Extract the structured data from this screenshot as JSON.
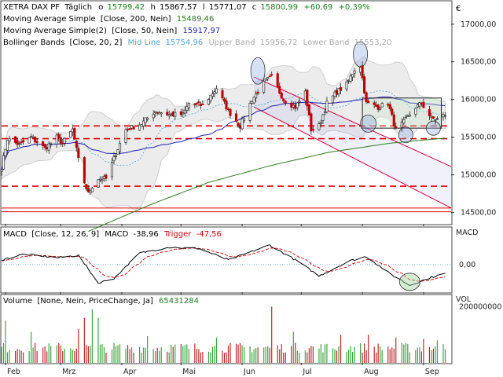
{
  "colors": {
    "candle_up": "#2b2b2b",
    "candle_down": "#c00000",
    "sma200": "#2e7d1e",
    "sma50": "#1f1fb4",
    "bollinger_band": "#cfcfcf",
    "bollinger_mid": "#4aa3df",
    "support_line": "#e00000",
    "channel": "#d9003a",
    "macd": "#000000",
    "trigger": "#d00000",
    "volume_up": "#3aa641",
    "volume_down": "#c0262d",
    "highlight_ellipse": "#3c6e3c"
  },
  "header": {
    "symbol": "XETRA DAX PF",
    "period": "Täglich",
    "open_label": "o",
    "open": "15799,42",
    "high_label": "h",
    "high": "15867,57",
    "low_label": "l",
    "low": "15771,07",
    "close_label": "c",
    "close": "15800,99",
    "change": "+60,69",
    "change_pct": "+0,39%",
    "currency_symbol": "€"
  },
  "legend": {
    "sma200_name": "Moving Average Simple",
    "sma200_params": "[Close, 200, Nein]",
    "sma200_value": "15489,46",
    "sma50_name": "Moving Average Simple(2)",
    "sma50_params": "[Close, 50, Nein]",
    "sma50_value": "15917,97",
    "bb_name": "Bollinger Bands",
    "bb_params": "[Close, 20, 2]",
    "bb_mid_label": "Mid Line",
    "bb_mid_value": "15754,96",
    "bb_upper_label": "Upper Band",
    "bb_upper_value": "15956,72",
    "bb_lower_label": "Lower Band",
    "bb_lower_value": "15553,20"
  },
  "macd_legend": {
    "name": "MACD",
    "params": "[Close, 12, 26, 9]",
    "macd_label": "MACD",
    "macd_value": "-38,96",
    "trigger_label": "Trigger",
    "trigger_value": "-47,56",
    "axis_title": "MACD"
  },
  "volume_legend": {
    "name": "Volume",
    "params": "[None, Nein, PriceChange, Ja]",
    "value": "65431284",
    "axis_title": "VOL"
  },
  "chart_data": {
    "type": "candlestick",
    "price_axis": {
      "ylim": [
        14350,
        17300
      ],
      "ticks": [
        14500,
        15000,
        15500,
        16000,
        16500,
        17000
      ],
      "tick_labels": [
        "14500,00",
        "15000,00",
        "15500,00",
        "16000,00",
        "16500,00",
        "17000,00"
      ]
    },
    "x_axis": {
      "range": [
        "2023-01-30",
        "2023-09-15"
      ],
      "tick_dates": [
        "2023-02-01",
        "2023-03-01",
        "2023-04-01",
        "2023-05-01",
        "2023-06-01",
        "2023-07-01",
        "2023-08-01",
        "2023-09-01"
      ],
      "tick_labels": [
        "Feb",
        "Mrz",
        "Apr",
        "Mai",
        "Jun",
        "Jul",
        "Aug",
        "Sep"
      ]
    },
    "close_anchors": [
      [
        "2023-01-30",
        15100
      ],
      [
        "2023-02-02",
        15480
      ],
      [
        "2023-02-08",
        15400
      ],
      [
        "2023-02-14",
        15500
      ],
      [
        "2023-02-21",
        15350
      ],
      [
        "2023-02-27",
        15500
      ],
      [
        "2023-03-02",
        15420
      ],
      [
        "2023-03-07",
        15600
      ],
      [
        "2023-03-10",
        15200
      ],
      [
        "2023-03-13",
        14900
      ],
      [
        "2023-03-15",
        14750
      ],
      [
        "2023-03-17",
        14850
      ],
      [
        "2023-03-20",
        14950
      ],
      [
        "2023-03-24",
        14950
      ],
      [
        "2023-03-30",
        15350
      ],
      [
        "2023-04-03",
        15600
      ],
      [
        "2023-04-11",
        15680
      ],
      [
        "2023-04-18",
        15850
      ],
      [
        "2023-04-25",
        15800
      ],
      [
        "2023-05-02",
        15800
      ],
      [
        "2023-05-05",
        15950
      ],
      [
        "2023-05-12",
        15920
      ],
      [
        "2023-05-19",
        16150
      ],
      [
        "2023-05-25",
        15850
      ],
      [
        "2023-05-31",
        15650
      ],
      [
        "2023-06-06",
        16000
      ],
      [
        "2023-06-13",
        16250
      ],
      [
        "2023-06-16",
        16300
      ],
      [
        "2023-06-22",
        16000
      ],
      [
        "2023-06-28",
        15900
      ],
      [
        "2023-07-03",
        16100
      ],
      [
        "2023-07-06",
        15600
      ],
      [
        "2023-07-10",
        15650
      ],
      [
        "2023-07-14",
        15950
      ],
      [
        "2023-07-19",
        16100
      ],
      [
        "2023-07-24",
        16200
      ],
      [
        "2023-07-28",
        16400
      ],
      [
        "2023-07-31",
        16450
      ],
      [
        "2023-08-03",
        15950
      ],
      [
        "2023-08-09",
        15900
      ],
      [
        "2023-08-14",
        15950
      ],
      [
        "2023-08-18",
        15600
      ],
      [
        "2023-08-22",
        15700
      ],
      [
        "2023-08-28",
        15900
      ],
      [
        "2023-08-31",
        15950
      ],
      [
        "2023-09-05",
        15750
      ],
      [
        "2023-09-08",
        15740
      ],
      [
        "2023-09-12",
        15800
      ]
    ],
    "sma200_anchors": [
      [
        "2023-03-15",
        14250
      ],
      [
        "2023-04-15",
        14600
      ],
      [
        "2023-05-15",
        14900
      ],
      [
        "2023-06-15",
        15120
      ],
      [
        "2023-07-15",
        15300
      ],
      [
        "2023-08-15",
        15420
      ],
      [
        "2023-09-12",
        15489
      ]
    ],
    "support_lines": [
      15650,
      15480,
      14850,
      14560,
      14510
    ],
    "channel": {
      "upper": [
        [
          "2023-06-07",
          16300
        ],
        [
          "2023-09-15",
          15110
        ]
      ],
      "lower": [
        [
          "2023-06-07",
          15900
        ],
        [
          "2023-09-15",
          14560
        ]
      ]
    },
    "consolidation_box": {
      "x": [
        "2023-08-01",
        "2023-09-10"
      ],
      "y": [
        15620,
        16020
      ]
    },
    "macd_axis": {
      "ylim": [
        -120,
        160
      ],
      "ticks": [
        0
      ],
      "tick_labels": [
        "0,00"
      ]
    },
    "macd_anchors": [
      [
        "2023-01-30",
        20
      ],
      [
        "2023-02-10",
        45
      ],
      [
        "2023-02-28",
        30
      ],
      [
        "2023-03-10",
        40
      ],
      [
        "2023-03-20",
        -80
      ],
      [
        "2023-03-28",
        -60
      ],
      [
        "2023-04-10",
        50
      ],
      [
        "2023-04-25",
        75
      ],
      [
        "2023-05-10",
        70
      ],
      [
        "2023-05-25",
        20
      ],
      [
        "2023-06-15",
        85
      ],
      [
        "2023-06-30",
        10
      ],
      [
        "2023-07-10",
        -50
      ],
      [
        "2023-07-25",
        15
      ],
      [
        "2023-08-03",
        35
      ],
      [
        "2023-08-15",
        -40
      ],
      [
        "2023-08-25",
        -90
      ],
      [
        "2023-09-05",
        -55
      ],
      [
        "2023-09-12",
        -39
      ]
    ],
    "volume_axis": {
      "ylim": [
        0,
        240000000
      ],
      "ticks": [
        200000000
      ],
      "tick_labels": [
        "200000000"
      ]
    },
    "volume_spikes": [
      [
        "2023-02-01",
        150000000
      ],
      [
        "2023-02-14",
        110000000
      ],
      [
        "2023-03-10",
        120000000
      ],
      [
        "2023-03-13",
        160000000
      ],
      [
        "2023-03-17",
        190000000
      ],
      [
        "2023-03-20",
        160000000
      ],
      [
        "2023-04-14",
        95000000
      ],
      [
        "2023-05-19",
        90000000
      ],
      [
        "2023-06-16",
        200000000
      ],
      [
        "2023-06-27",
        110000000
      ],
      [
        "2023-07-21",
        100000000
      ],
      [
        "2023-08-04",
        100000000
      ],
      [
        "2023-08-18",
        90000000
      ],
      [
        "2023-09-01",
        85000000
      ],
      [
        "2023-09-08",
        80000000
      ]
    ],
    "volume_base": 60000000
  }
}
